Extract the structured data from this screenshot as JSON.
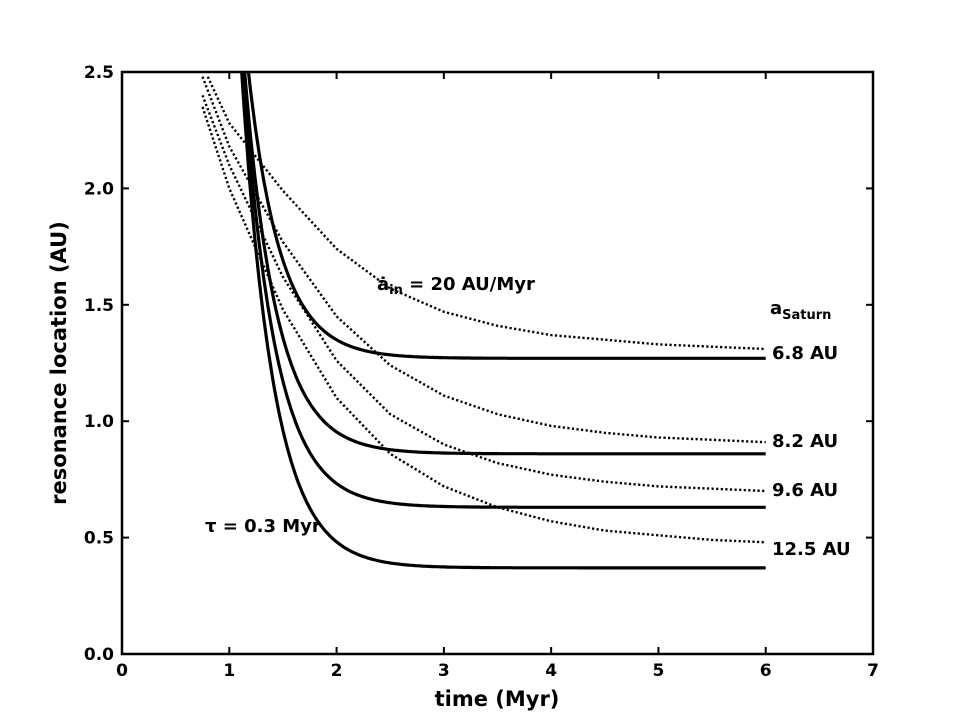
{
  "chart_data": {
    "type": "line",
    "xlabel": "time (Myr)",
    "ylabel": "resonance location (AU)",
    "xlim": [
      0,
      7
    ],
    "ylim": [
      0.0,
      2.5
    ],
    "xticks": [
      "0",
      "1",
      "2",
      "3",
      "4",
      "5",
      "6",
      "7"
    ],
    "yticks": [
      "0.0",
      "0.5",
      "1.0",
      "1.5",
      "2.0",
      "2.5"
    ],
    "grid": false,
    "annotations": {
      "linear_rate": {
        "symbol": "ȧ",
        "sub": "in",
        "rest": " = 20 AU/Myr"
      },
      "timescale": "τ = 0.3 Myr",
      "legend_header": {
        "main": "a",
        "sub": "Saturn"
      }
    },
    "series": [
      {
        "name": "6.8 AU",
        "style": "solid",
        "t0": 1.0,
        "a0": 3.5,
        "a_final": 1.27,
        "tau": 0.3,
        "x_end": 6
      },
      {
        "name": "8.2 AU",
        "style": "solid",
        "t0": 1.0,
        "a0": 3.5,
        "a_final": 0.86,
        "tau": 0.3,
        "x_end": 6
      },
      {
        "name": "9.6 AU",
        "style": "solid",
        "t0": 1.0,
        "a0": 3.5,
        "a_final": 0.63,
        "tau": 0.3,
        "x_end": 6
      },
      {
        "name": "12.5 AU",
        "style": "solid",
        "t0": 1.0,
        "a0": 3.5,
        "a_final": 0.37,
        "tau": 0.3,
        "x_end": 6
      },
      {
        "name": "6.8 AU (linear)",
        "style": "dotted",
        "x": [
          0.8,
          1.0,
          1.5,
          2.0,
          2.5,
          3.0,
          3.5,
          4.0,
          4.5,
          5.0,
          5.5,
          6.0
        ],
        "y": [
          2.48,
          2.28,
          1.99,
          1.74,
          1.57,
          1.47,
          1.41,
          1.37,
          1.35,
          1.33,
          1.32,
          1.31
        ]
      },
      {
        "name": "8.2 AU (linear)",
        "style": "dotted",
        "x": [
          0.75,
          1.0,
          1.5,
          2.0,
          2.5,
          3.0,
          3.5,
          4.0,
          4.5,
          5.0,
          5.5,
          6.0
        ],
        "y": [
          2.48,
          2.18,
          1.77,
          1.45,
          1.24,
          1.11,
          1.03,
          0.98,
          0.95,
          0.93,
          0.92,
          0.91
        ]
      },
      {
        "name": "9.6 AU (linear)",
        "style": "dotted",
        "x": [
          0.75,
          1.0,
          1.5,
          2.0,
          2.5,
          3.0,
          3.5,
          4.0,
          4.5,
          5.0,
          5.5,
          6.0
        ],
        "y": [
          2.4,
          2.1,
          1.62,
          1.26,
          1.03,
          0.9,
          0.82,
          0.77,
          0.74,
          0.72,
          0.71,
          0.7
        ]
      },
      {
        "name": "12.5 AU (linear)",
        "style": "dotted",
        "x": [
          0.75,
          1.0,
          1.5,
          2.0,
          2.5,
          3.0,
          3.5,
          4.0,
          4.5,
          5.0,
          5.5,
          6.0
        ],
        "y": [
          2.35,
          2.0,
          1.48,
          1.1,
          0.86,
          0.72,
          0.63,
          0.57,
          0.53,
          0.51,
          0.49,
          0.48
        ]
      }
    ]
  }
}
